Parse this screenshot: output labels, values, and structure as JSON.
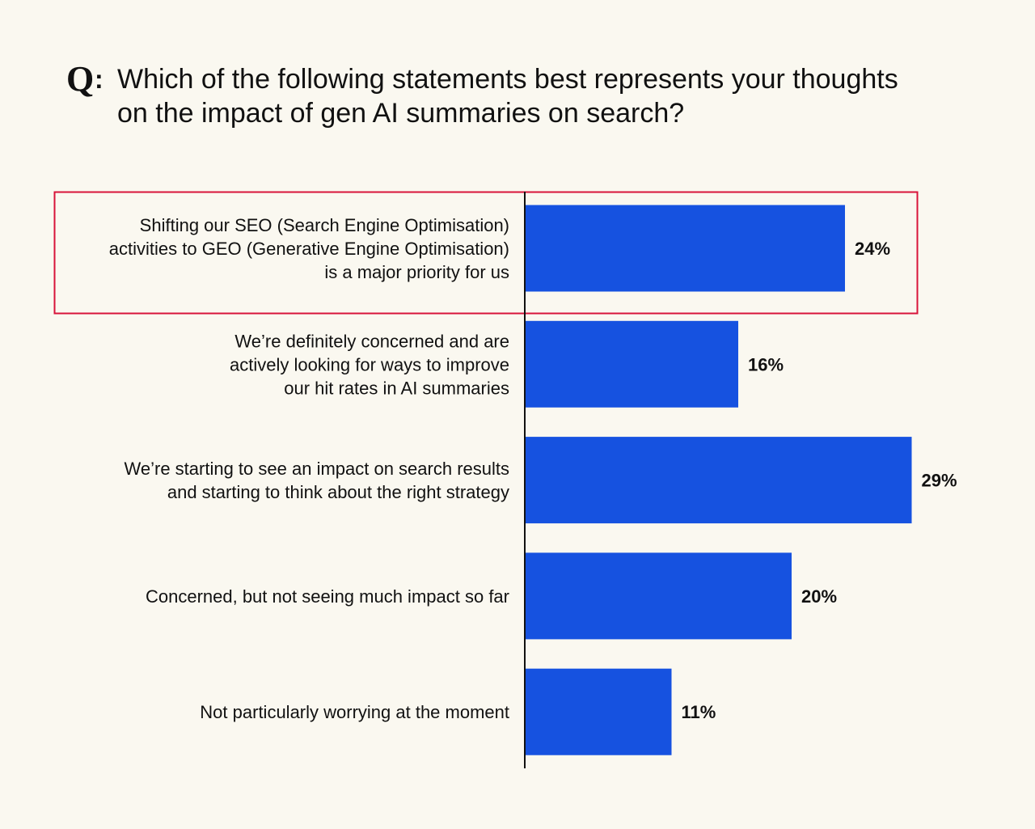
{
  "question": {
    "marker": "Q",
    "colon": ":",
    "text": "Which of the following statements best represents your thoughts on the impact of gen AI summaries on search?"
  },
  "colors": {
    "background": "#faf8f0",
    "bar": "#1652e0",
    "axis": "#111111",
    "highlight_border": "#d8143a",
    "text": "#111111"
  },
  "chart_data": {
    "type": "bar",
    "orientation": "horizontal",
    "title": "Which of the following statements best represents your thoughts on the impact of gen AI summaries on search?",
    "xlabel": "",
    "ylabel": "",
    "xlim": [
      0,
      30
    ],
    "grid": false,
    "legend": "none",
    "highlighted_index": 0,
    "categories": [
      [
        "Shifting our SEO (Search Engine Optimisation)",
        "activities to GEO (Generative Engine Optimisation)",
        "is a major priority for us"
      ],
      [
        "We’re definitely concerned and are",
        "actively looking for ways to improve",
        "our hit rates in AI summaries"
      ],
      [
        "We’re starting to see an impact on search results",
        "and starting to think about the right strategy"
      ],
      [
        "Concerned, but not seeing much impact so far"
      ],
      [
        "Not particularly worrying at the moment"
      ]
    ],
    "values": [
      24,
      16,
      29,
      20,
      11
    ],
    "value_labels": [
      "24%",
      "16%",
      "29%",
      "20%",
      "11%"
    ]
  }
}
